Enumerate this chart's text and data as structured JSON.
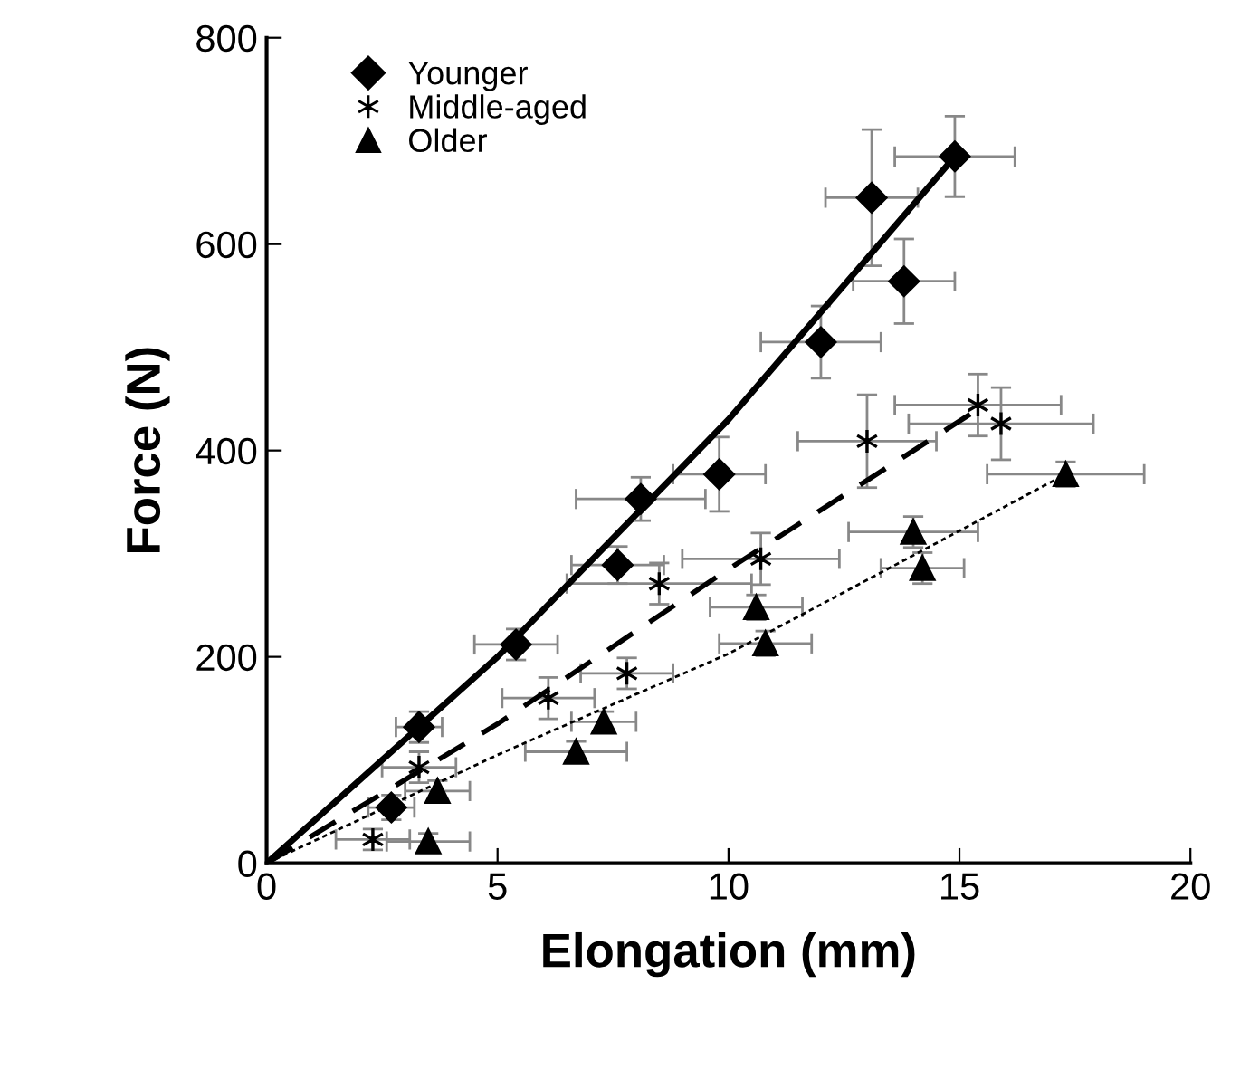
{
  "chart_data": {
    "type": "scatter",
    "xlabel": "Elongation (mm)",
    "ylabel": "Force (N)",
    "xlim": [
      0,
      20
    ],
    "ylim": [
      0,
      800
    ],
    "xticks": [
      0,
      5,
      10,
      15,
      20
    ],
    "yticks": [
      0,
      200,
      400,
      600,
      800
    ],
    "grid": false,
    "legend": "top left",
    "series": [
      {
        "name": "Younger",
        "color": "#000000",
        "marker": "diamond",
        "x": [
          2.7,
          3.3,
          5.4,
          7.6,
          8.1,
          9.8,
          12.0,
          13.1,
          13.8,
          14.9
        ],
        "values": [
          54,
          132,
          212,
          289,
          353,
          377,
          505,
          645,
          564,
          685
        ],
        "xerrors": [
          0.5,
          0.5,
          0.9,
          1.0,
          1.4,
          1.0,
          1.3,
          1.0,
          1.1,
          1.3
        ],
        "errors": [
          12,
          15,
          15,
          18,
          21,
          36,
          35,
          66,
          41,
          39
        ]
      },
      {
        "name": "Middle-aged",
        "color": "#000000",
        "marker": "cross",
        "x": [
          2.3,
          3.3,
          6.1,
          7.8,
          8.5,
          10.7,
          13.0,
          15.4,
          15.9
        ],
        "values": [
          23,
          93,
          160,
          184,
          271,
          295,
          409,
          444,
          426
        ],
        "xerrors": [
          0.8,
          0.8,
          1.0,
          1.0,
          2.0,
          1.7,
          1.5,
          1.8,
          2.0
        ],
        "errors": [
          10,
          15,
          20,
          15,
          20,
          25,
          45,
          30,
          35
        ]
      },
      {
        "name": "Older",
        "color": "#000000",
        "marker": "triangle",
        "x": [
          3.5,
          3.7,
          6.7,
          7.3,
          10.6,
          10.8,
          14.0,
          14.2,
          17.3
        ],
        "values": [
          21,
          70,
          108,
          137,
          248,
          213,
          321,
          286,
          377
        ],
        "xerrors": [
          0.9,
          0.7,
          1.1,
          0.7,
          1.0,
          1.0,
          1.4,
          0.9,
          1.7
        ],
        "errors": [
          8,
          10,
          10,
          10,
          12,
          12,
          15,
          15,
          12
        ]
      },
      {
        "type": "line",
        "color": "#000000",
        "line_style": "solid",
        "marker": "none",
        "x": [
          0,
          5,
          10,
          14.9
        ],
        "values": [
          0,
          200,
          430,
          685
        ]
      },
      {
        "type": "line",
        "color": "#000000",
        "line_style": "dashed",
        "marker": "none",
        "x": [
          0,
          5,
          10,
          15.4
        ],
        "values": [
          0,
          135,
          285,
          440
        ]
      },
      {
        "type": "line",
        "color": "#000000",
        "line_style": "dotted",
        "marker": "none",
        "x": [
          0,
          5,
          10,
          17.3
        ],
        "values": [
          0,
          105,
          203,
          377
        ]
      }
    ]
  }
}
